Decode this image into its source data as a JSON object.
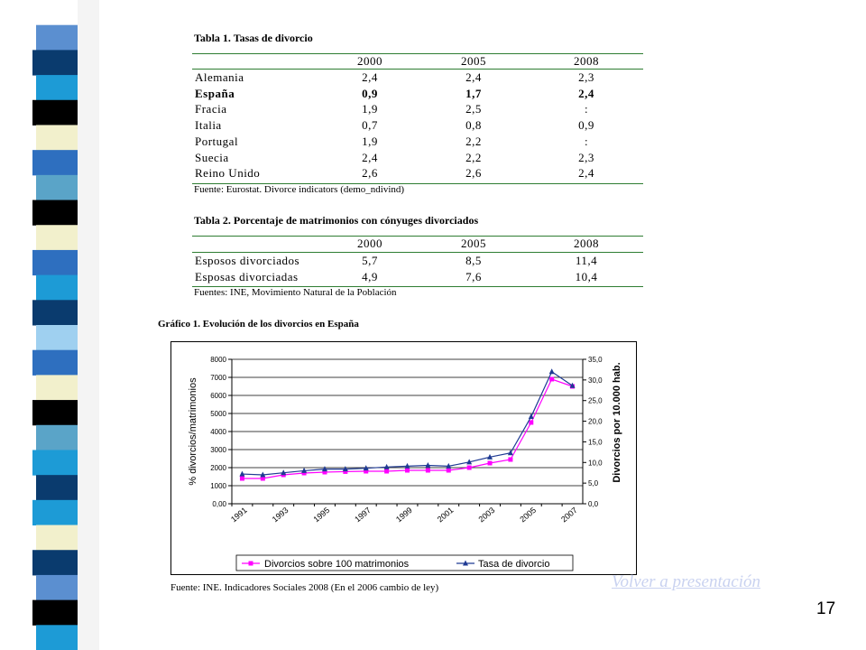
{
  "table1": {
    "title": "Tabla 1. Tasas de divorcio",
    "headers": [
      "2000",
      "2005",
      "2008"
    ],
    "rows": [
      {
        "country": "Alemania",
        "values": [
          "2,4",
          "2,4",
          "2,3"
        ],
        "bold": false
      },
      {
        "country": "España",
        "values": [
          "0,9",
          "1,7",
          "2,4"
        ],
        "bold": true
      },
      {
        "country": "Fracia",
        "values": [
          "1,9",
          "2,5",
          ":"
        ],
        "bold": false
      },
      {
        "country": "Italia",
        "values": [
          "0,7",
          "0,8",
          "0,9"
        ],
        "bold": false
      },
      {
        "country": "Portugal",
        "values": [
          "1,9",
          "2,2",
          ":"
        ],
        "bold": false
      },
      {
        "country": "Suecia",
        "values": [
          "2,4",
          "2,2",
          "2,3"
        ],
        "bold": false
      },
      {
        "country": "Reino Unido",
        "values": [
          "2,6",
          "2,6",
          "2,4"
        ],
        "bold": false
      }
    ],
    "source": "Fuente: Eurostat. Divorce indicators (demo_ndivind)"
  },
  "table2": {
    "title": "Tabla 2. Porcentaje de matrimonios con cónyuges divorciados",
    "headers": [
      "2000",
      "2005",
      "2008"
    ],
    "rows": [
      {
        "label": "Esposos divorciados",
        "values": [
          "5,7",
          "8,5",
          "11,4"
        ]
      },
      {
        "label": "Esposas divorciadas",
        "values": [
          "4,9",
          "7,6",
          "10,4"
        ]
      }
    ],
    "source": "Fuentes: INE, Movimiento Natural de la Población"
  },
  "chart_title": "Gráfico 1. Evolución de los divorcios en España",
  "chart_source": "Fuente: INE. Indicadores Sociales 2008 (En el 2006 cambio de ley)",
  "back_link": "Volver a presentación",
  "page_number": "17",
  "colors": {
    "series1": "#ff00ff",
    "series2": "#1f3a93",
    "rule": "#2e7d32",
    "link": "#c9d2f0"
  },
  "chart_data": {
    "type": "line",
    "x": [
      1991,
      1992,
      1993,
      1994,
      1995,
      1996,
      1997,
      1998,
      1999,
      2000,
      2001,
      2002,
      2003,
      2004,
      2005,
      2006,
      2007
    ],
    "x_tick_labels": [
      "1991",
      "1993",
      "1995",
      "1997",
      "1999",
      "2001",
      "2003",
      "2005",
      "2007"
    ],
    "y_left_label": "% divorcios/matrimonios",
    "y_right_label": "Divorcios por 10.000 hab.",
    "y_left_ticks": [
      "0,00",
      "1000",
      "2000",
      "3000",
      "4000",
      "5000",
      "6000",
      "7000",
      "8000"
    ],
    "y_right_ticks": [
      "0,0",
      "5,0",
      "10,0",
      "15,0",
      "20,0",
      "25,0",
      "30,0",
      "35,0"
    ],
    "ylim_left": [
      0,
      8000
    ],
    "ylim_right": [
      0,
      35
    ],
    "grid": true,
    "legend_position": "bottom",
    "series": [
      {
        "name": "Divorcios sobre 100 matrimonios",
        "axis": "left",
        "values": [
          1400,
          1400,
          1600,
          1700,
          1750,
          1780,
          1800,
          1800,
          1850,
          1850,
          1850,
          2000,
          2250,
          2450,
          4500,
          6900,
          6500
        ]
      },
      {
        "name": "Tasa de divorcio",
        "axis": "right",
        "values": [
          7.2,
          7.0,
          7.5,
          8.0,
          8.4,
          8.4,
          8.6,
          8.9,
          9.1,
          9.3,
          9.1,
          10.1,
          11.3,
          12.3,
          21.1,
          32.0,
          28.6
        ]
      }
    ]
  }
}
